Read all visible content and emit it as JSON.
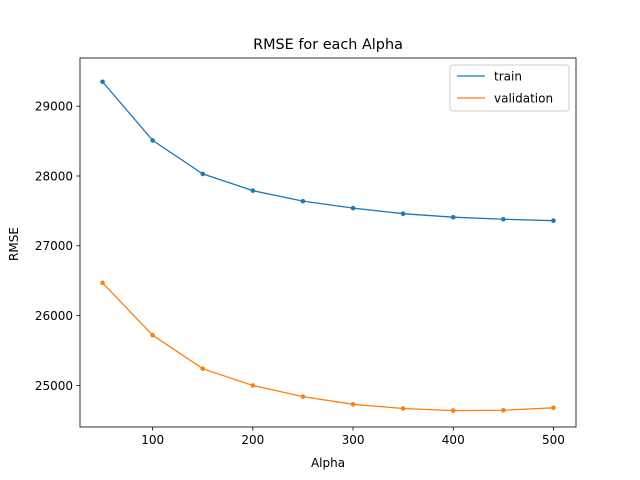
{
  "chart_data": {
    "type": "line",
    "title": "RMSE for each Alpha",
    "xlabel": "Alpha",
    "ylabel": "RMSE",
    "x": [
      50,
      100,
      150,
      200,
      250,
      300,
      350,
      400,
      450,
      500
    ],
    "xlim": [
      27.5,
      522.5
    ],
    "ylim": [
      24405,
      29690
    ],
    "xticks": [
      100,
      200,
      300,
      400,
      500
    ],
    "yticks": [
      25000,
      26000,
      27000,
      28000,
      29000
    ],
    "grid": false,
    "legend": "top-right",
    "series": [
      {
        "name": "train",
        "color": "#1f77b4",
        "values": [
          29350,
          28510,
          28030,
          27790,
          27640,
          27540,
          27460,
          27410,
          27380,
          27360
        ]
      },
      {
        "name": "validation",
        "color": "#ff7f0e",
        "values": [
          26470,
          25720,
          25240,
          25000,
          24840,
          24730,
          24670,
          24640,
          24645,
          24680
        ]
      }
    ]
  }
}
